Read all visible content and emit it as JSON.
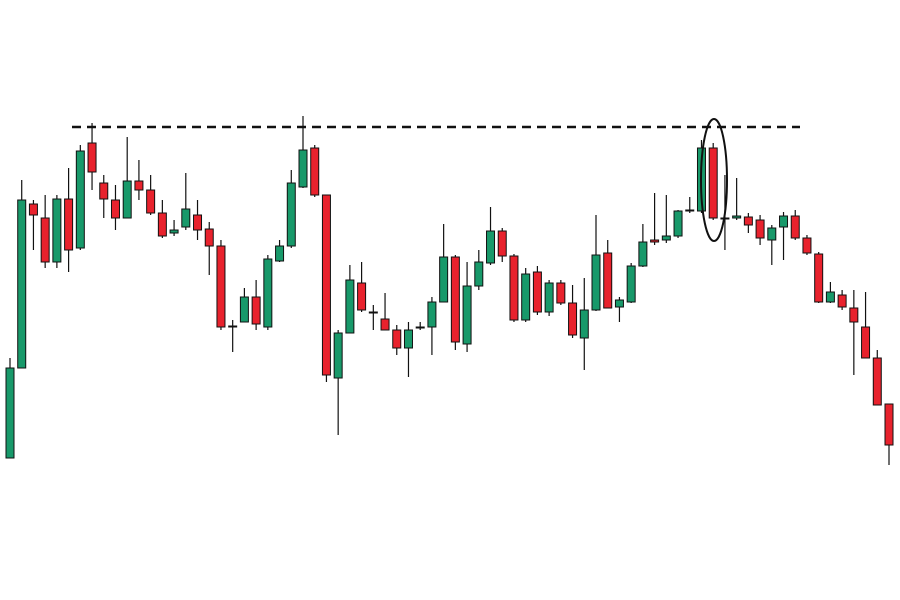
{
  "chart_data": {
    "type": "candlestick",
    "ylim": [
      0,
      600
    ],
    "up_color": "#18996a",
    "down_color": "#e8222d",
    "resistance": 473,
    "open": [
      142,
      232,
      396,
      382,
      338,
      401,
      352,
      457,
      417,
      400,
      382,
      419,
      410,
      387,
      367,
      373,
      385,
      371,
      354,
      274,
      278,
      303,
      273,
      339,
      354,
      413,
      452,
      405,
      222,
      267,
      317,
      288,
      281,
      270,
      252,
      273,
      273,
      298,
      343,
      256,
      314,
      337,
      369,
      344,
      280,
      328,
      288,
      317,
      297,
      262,
      290,
      347,
      293,
      298,
      334,
      360,
      360,
      364,
      390,
      389,
      452,
      382,
      382,
      383,
      380,
      360,
      373,
      384,
      362,
      346,
      298,
      305,
      292,
      273,
      242,
      196
    ],
    "high": [
      242,
      420,
      400,
      405,
      405,
      432,
      455,
      477,
      425,
      415,
      463,
      440,
      425,
      400,
      380,
      427,
      400,
      378,
      360,
      280,
      312,
      320,
      345,
      360,
      430,
      484,
      455,
      405,
      270,
      335,
      338,
      295,
      307,
      275,
      278,
      278,
      303,
      376,
      345,
      338,
      350,
      393,
      372,
      346,
      332,
      334,
      320,
      320,
      315,
      322,
      385,
      360,
      303,
      337,
      376,
      407,
      405,
      390,
      403,
      460,
      457,
      425,
      422,
      387,
      385,
      375,
      388,
      390,
      365,
      348,
      318,
      310,
      310,
      308,
      250,
      196
    ],
    "low": [
      142,
      232,
      350,
      332,
      332,
      328,
      350,
      410,
      382,
      370,
      382,
      400,
      385,
      362,
      364,
      370,
      360,
      325,
      270,
      248,
      278,
      270,
      270,
      338,
      352,
      412,
      403,
      218,
      165,
      267,
      288,
      270,
      270,
      245,
      223,
      270,
      245,
      298,
      250,
      248,
      310,
      335,
      338,
      278,
      278,
      285,
      284,
      295,
      262,
      230,
      289,
      292,
      278,
      297,
      333,
      355,
      357,
      362,
      387,
      387,
      380,
      350,
      380,
      367,
      355,
      335,
      340,
      360,
      345,
      297,
      297,
      290,
      225,
      242,
      195,
      135
    ],
    "close": [
      232,
      400,
      385,
      338,
      401,
      350,
      449,
      428,
      401,
      382,
      419,
      410,
      387,
      364,
      370,
      391,
      370,
      354,
      273,
      273,
      303,
      276,
      341,
      354,
      417,
      450,
      405,
      225,
      267,
      320,
      290,
      287,
      270,
      252,
      270,
      272,
      298,
      343,
      258,
      314,
      338,
      369,
      344,
      280,
      326,
      288,
      317,
      297,
      265,
      290,
      345,
      292,
      300,
      334,
      358,
      358,
      364,
      389,
      389,
      452,
      382,
      381,
      384,
      375,
      362,
      372,
      384,
      362,
      347,
      298,
      308,
      293,
      278,
      242,
      195,
      155
    ]
  }
}
